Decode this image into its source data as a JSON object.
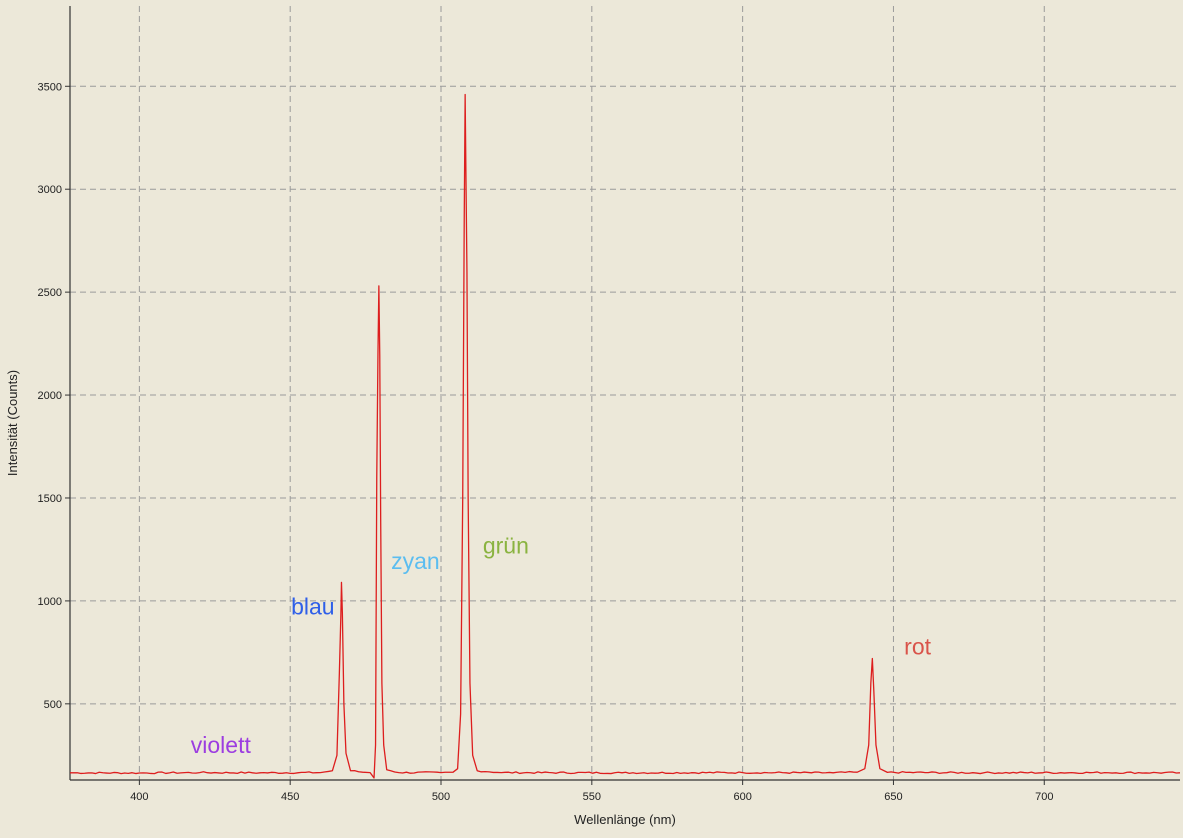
{
  "chart_data": {
    "type": "line",
    "xlabel": "Wellenlänge (nm)",
    "ylabel": "Intensität (Counts)",
    "xlim": [
      377,
      745
    ],
    "ylim": [
      130,
      3890
    ],
    "x_ticks": [
      400,
      450,
      500,
      550,
      600,
      650,
      700
    ],
    "y_ticks": [
      500,
      1000,
      1500,
      2000,
      2500,
      3000,
      3500
    ],
    "grid": true,
    "grid_style": "dashed",
    "baseline": 165,
    "line_color": "#dd1e1e",
    "series": [
      {
        "x": [
          377,
          400,
          420,
          440,
          460,
          464,
          465.5,
          466.3,
          466.8,
          467.0,
          467.3,
          467.8,
          468.5,
          470,
          474,
          476.5,
          477.8,
          478.3,
          478.7,
          479.1,
          479.4,
          479.7,
          480.0,
          480.4,
          481.0,
          482,
          486,
          500,
          504,
          505.5,
          506.5,
          507.2,
          507.7,
          508.0,
          508.3,
          508.6,
          509.0,
          509.6,
          510.5,
          512,
          520,
          560,
          600,
          630,
          638,
          640.5,
          641.8,
          642.5,
          643.0,
          643.5,
          644.2,
          645.5,
          648,
          680,
          720,
          745
        ],
        "y": [
          165,
          164,
          166,
          165,
          166,
          175,
          250,
          650,
          930,
          1090,
          940,
          500,
          260,
          175,
          168,
          166,
          140,
          300,
          1600,
          2200,
          2530,
          2190,
          1400,
          600,
          300,
          180,
          166,
          166,
          168,
          185,
          450,
          1500,
          2850,
          3460,
          3020,
          2600,
          1500,
          600,
          250,
          175,
          166,
          165,
          166,
          165,
          168,
          185,
          300,
          600,
          720,
          560,
          300,
          185,
          167,
          165,
          166,
          165
        ]
      }
    ],
    "annotations": [
      {
        "text": "violett",
        "x": 427.0,
        "y": 262,
        "color": "#9c3de0"
      },
      {
        "text": "blau",
        "x": 457.5,
        "y": 935,
        "color": "#2f5fe8"
      },
      {
        "text": "zyan",
        "x": 491.5,
        "y": 1155,
        "color": "#5bbdf0"
      },
      {
        "text": "grün",
        "x": 521.5,
        "y": 1230,
        "color": "#8ab340"
      },
      {
        "text": "rot",
        "x": 658.0,
        "y": 740,
        "color": "#d9534a"
      }
    ]
  }
}
